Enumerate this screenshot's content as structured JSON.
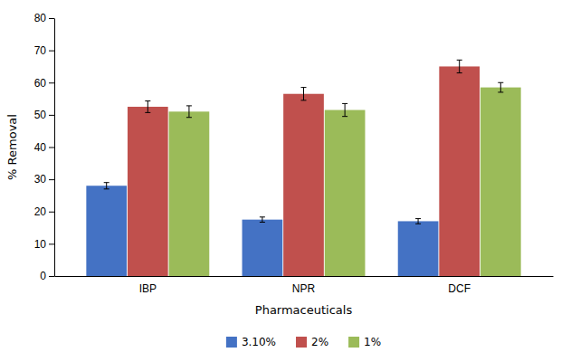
{
  "chart_data": {
    "type": "bar",
    "categories": [
      "IBP",
      "NPR",
      "DCF"
    ],
    "series": [
      {
        "name": "3.10%",
        "color": "#4472C4",
        "values": [
          28,
          17.5,
          17
        ],
        "errors": [
          1.0,
          0.8,
          0.8
        ]
      },
      {
        "name": "2%",
        "color": "#C0504D",
        "values": [
          52.5,
          56.5,
          65
        ],
        "errors": [
          1.8,
          2.0,
          2.0
        ]
      },
      {
        "name": "1%",
        "color": "#9BBB59",
        "values": [
          51,
          51.5,
          58.5
        ],
        "errors": [
          1.8,
          2.0,
          1.5
        ]
      }
    ],
    "xlabel": "Pharmaceuticals",
    "ylabel": "% Removal",
    "ylim": [
      0,
      80
    ],
    "yticks": [
      0,
      10,
      20,
      30,
      40,
      50,
      60,
      70,
      80
    ],
    "grid": false,
    "legend": "bottom"
  }
}
